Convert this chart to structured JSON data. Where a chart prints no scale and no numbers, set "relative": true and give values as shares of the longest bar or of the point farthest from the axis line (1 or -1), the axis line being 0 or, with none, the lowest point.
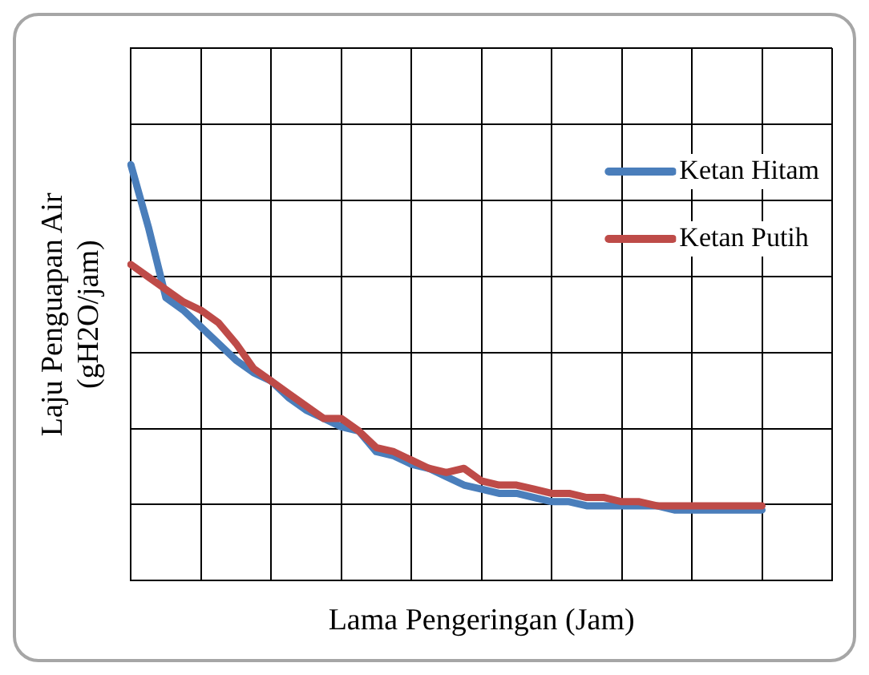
{
  "chart_data": {
    "type": "line",
    "relative": true,
    "xlabel": "Lama Pengeringan (Jam)",
    "ylabel": "Laju Penguapan Air\n(gH2O/jam)",
    "grid": true,
    "legend": "top right",
    "marker": "none",
    "line_style": "solid",
    "categories": [
      null,
      null,
      null,
      null,
      null,
      null,
      null,
      null,
      null,
      null,
      null,
      null,
      null,
      null,
      null,
      null,
      null,
      null,
      null,
      null,
      null,
      null,
      null,
      null,
      null,
      null,
      null,
      null,
      null,
      null,
      null,
      null,
      null,
      null,
      null,
      null,
      null,
      null,
      null,
      null,
      null
    ],
    "series": [
      {
        "name": "Ketan Hitam",
        "color": "#4a7ebb",
        "values": [
          1.0,
          0.85,
          0.68,
          0.65,
          0.61,
          0.57,
          0.53,
          0.5,
          0.48,
          0.44,
          0.41,
          0.39,
          0.37,
          0.36,
          0.31,
          0.3,
          0.28,
          0.27,
          0.25,
          0.23,
          0.22,
          0.21,
          0.21,
          0.2,
          0.19,
          0.19,
          0.18,
          0.18,
          0.18,
          0.18,
          0.18,
          0.17,
          0.17,
          0.17,
          0.17,
          0.17,
          0.17,
          null,
          null,
          null,
          null
        ]
      },
      {
        "name": "Ketan Putih",
        "color": "#be4b48",
        "values": [
          0.76,
          0.73,
          0.7,
          0.67,
          0.65,
          0.62,
          0.57,
          0.51,
          0.48,
          0.45,
          0.42,
          0.39,
          0.39,
          0.36,
          0.32,
          0.31,
          0.29,
          0.27,
          0.26,
          0.27,
          0.24,
          0.23,
          0.23,
          0.22,
          0.21,
          0.21,
          0.2,
          0.2,
          0.19,
          0.19,
          0.18,
          0.18,
          0.18,
          0.18,
          0.18,
          0.18,
          0.18,
          null,
          null,
          null,
          null
        ]
      }
    ]
  }
}
